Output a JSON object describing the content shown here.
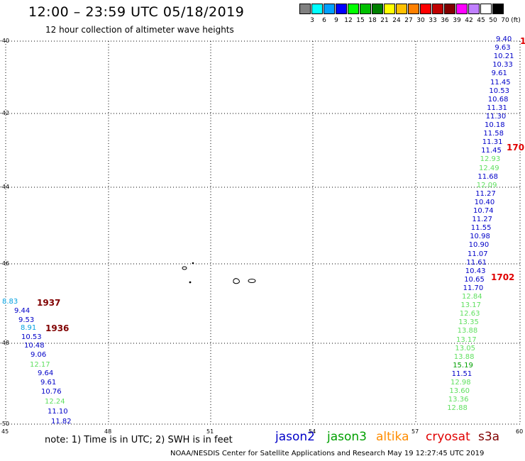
{
  "header": {
    "title": "12:00 – 23:59 UTC 05/18/2019",
    "subtitle": "12 hour collection of altimeter wave heights"
  },
  "legend": {
    "unit": "(ft)",
    "colors": [
      "#808080",
      "#00ffff",
      "#00a0ff",
      "#0000ff",
      "#00ff00",
      "#00c000",
      "#008000",
      "#ffff00",
      "#ffc000",
      "#ff8000",
      "#ff0000",
      "#c00000",
      "#800000",
      "#ff00ff",
      "#c080ff",
      "#ffffff",
      "#000000"
    ],
    "labels": [
      "3",
      "6",
      "9",
      "12",
      "15",
      "18",
      "21",
      "24",
      "27",
      "30",
      "33",
      "36",
      "39",
      "42",
      "45",
      "50",
      "70"
    ]
  },
  "map": {
    "y_labels": [
      "-40",
      "-42",
      "-44",
      "-46",
      "-48",
      "-50"
    ],
    "x_labels": [
      "45",
      "48",
      "51",
      "54",
      "57",
      "60"
    ]
  },
  "colors": {
    "jason2": "#0000c8",
    "jason3": "#00a000",
    "altika": "#ff8c00",
    "cryosat": "#e00000",
    "s3a": "#800000",
    "light_green": "#60e060",
    "cyan": "#00a0e0"
  },
  "left_track": {
    "values": [
      {
        "v": "8.83",
        "c": "cyan"
      },
      {
        "v": "9.44",
        "c": "jason2"
      },
      {
        "v": "9.53",
        "c": "jason2"
      },
      {
        "v": "8.91",
        "c": "cyan"
      },
      {
        "v": "10.53",
        "c": "jason2"
      },
      {
        "v": "10.48",
        "c": "jason2"
      },
      {
        "v": "9.06",
        "c": "jason2"
      },
      {
        "v": "12.17",
        "c": "light_green"
      },
      {
        "v": "9.64",
        "c": "jason2"
      },
      {
        "v": "9.61",
        "c": "jason2"
      },
      {
        "v": "10.76",
        "c": "jason2"
      },
      {
        "v": "12.24",
        "c": "light_green"
      },
      {
        "v": "11.10",
        "c": "jason2"
      },
      {
        "v": "11.82",
        "c": "jason2"
      }
    ],
    "times": [
      "1937",
      "1936"
    ]
  },
  "right_track": {
    "values": [
      {
        "v": "9.40",
        "c": "jason2"
      },
      {
        "v": "9.63",
        "c": "jason2"
      },
      {
        "v": "10.21",
        "c": "jason2"
      },
      {
        "v": "10.33",
        "c": "jason2"
      },
      {
        "v": "9.61",
        "c": "jason2"
      },
      {
        "v": "11.45",
        "c": "jason2"
      },
      {
        "v": "10.53",
        "c": "jason2"
      },
      {
        "v": "10.68",
        "c": "jason2"
      },
      {
        "v": "11.31",
        "c": "jason2"
      },
      {
        "v": "11.30",
        "c": "jason2"
      },
      {
        "v": "10.18",
        "c": "jason2"
      },
      {
        "v": "11.58",
        "c": "jason2"
      },
      {
        "v": "11.31",
        "c": "jason2"
      },
      {
        "v": "11.45",
        "c": "jason2"
      },
      {
        "v": "12.93",
        "c": "light_green"
      },
      {
        "v": "12.49",
        "c": "light_green"
      },
      {
        "v": "11.68",
        "c": "jason2"
      },
      {
        "v": "12.09",
        "c": "light_green"
      },
      {
        "v": "11.27",
        "c": "jason2"
      },
      {
        "v": "10.40",
        "c": "jason2"
      },
      {
        "v": "10.74",
        "c": "jason2"
      },
      {
        "v": "11.27",
        "c": "jason2"
      },
      {
        "v": "11.55",
        "c": "jason2"
      },
      {
        "v": "10.98",
        "c": "jason2"
      },
      {
        "v": "10.90",
        "c": "jason2"
      },
      {
        "v": "11.07",
        "c": "jason2"
      },
      {
        "v": "11.61",
        "c": "jason2"
      },
      {
        "v": "10.43",
        "c": "jason2"
      },
      {
        "v": "10.65",
        "c": "jason2"
      },
      {
        "v": "11.70",
        "c": "jason2"
      },
      {
        "v": "12.84",
        "c": "light_green"
      },
      {
        "v": "13.17",
        "c": "light_green"
      },
      {
        "v": "12.63",
        "c": "light_green"
      },
      {
        "v": "13.35",
        "c": "light_green"
      },
      {
        "v": "13.88",
        "c": "light_green"
      },
      {
        "v": "13.17",
        "c": "light_green"
      },
      {
        "v": "13.05",
        "c": "light_green"
      },
      {
        "v": "13.88",
        "c": "light_green"
      },
      {
        "v": "15.19",
        "c": "jason3"
      },
      {
        "v": "11.51",
        "c": "jason2"
      },
      {
        "v": "12.98",
        "c": "light_green"
      },
      {
        "v": "13.60",
        "c": "light_green"
      },
      {
        "v": "13.36",
        "c": "light_green"
      },
      {
        "v": "12.88",
        "c": "light_green"
      }
    ],
    "times": [
      "1",
      "170",
      "1702"
    ]
  },
  "footer": {
    "note": "note:  1) Time is in UTC; 2) SWH is in feet",
    "sats": [
      "jason2",
      "jason3",
      "altika",
      "cryosat",
      "s3a"
    ],
    "credit": "NOAA/NESDIS Center for Satellite Applications and Research     May 19 12:27:45 UTC 2019"
  }
}
